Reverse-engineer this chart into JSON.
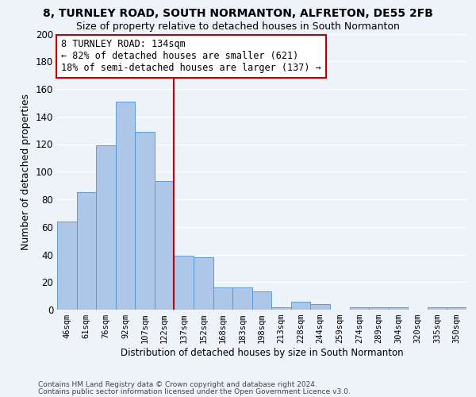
{
  "title1": "8, TURNLEY ROAD, SOUTH NORMANTON, ALFRETON, DE55 2FB",
  "title2": "Size of property relative to detached houses in South Normanton",
  "xlabel": "Distribution of detached houses by size in South Normanton",
  "ylabel": "Number of detached properties",
  "footer1": "Contains HM Land Registry data © Crown copyright and database right 2024.",
  "footer2": "Contains public sector information licensed under the Open Government Licence v3.0.",
  "categories": [
    "46sqm",
    "61sqm",
    "76sqm",
    "92sqm",
    "107sqm",
    "122sqm",
    "137sqm",
    "152sqm",
    "168sqm",
    "183sqm",
    "198sqm",
    "213sqm",
    "228sqm",
    "244sqm",
    "259sqm",
    "274sqm",
    "289sqm",
    "304sqm",
    "320sqm",
    "335sqm",
    "350sqm"
  ],
  "values": [
    64,
    85,
    119,
    151,
    129,
    93,
    39,
    38,
    16,
    16,
    13,
    2,
    6,
    4,
    0,
    2,
    2,
    2,
    0,
    2,
    2
  ],
  "bar_color": "#aec6e8",
  "bar_edge_color": "#5b9bd5",
  "vline_index": 6,
  "vline_color": "#c00000",
  "annotation_line1": "8 TURNLEY ROAD: 134sqm",
  "annotation_line2": "← 82% of detached houses are smaller (621)",
  "annotation_line3": "18% of semi-detached houses are larger (137) →",
  "annotation_box_color": "#ffffff",
  "annotation_box_edge_color": "#c00000",
  "annotation_fontsize": 8.5,
  "ylim": [
    0,
    200
  ],
  "yticks": [
    0,
    20,
    40,
    60,
    80,
    100,
    120,
    140,
    160,
    180,
    200
  ],
  "background_color": "#eef2f9",
  "grid_color": "#ffffff",
  "title1_fontsize": 10,
  "title2_fontsize": 9,
  "xlabel_fontsize": 8.5,
  "ylabel_fontsize": 9,
  "footer_fontsize": 6.5
}
